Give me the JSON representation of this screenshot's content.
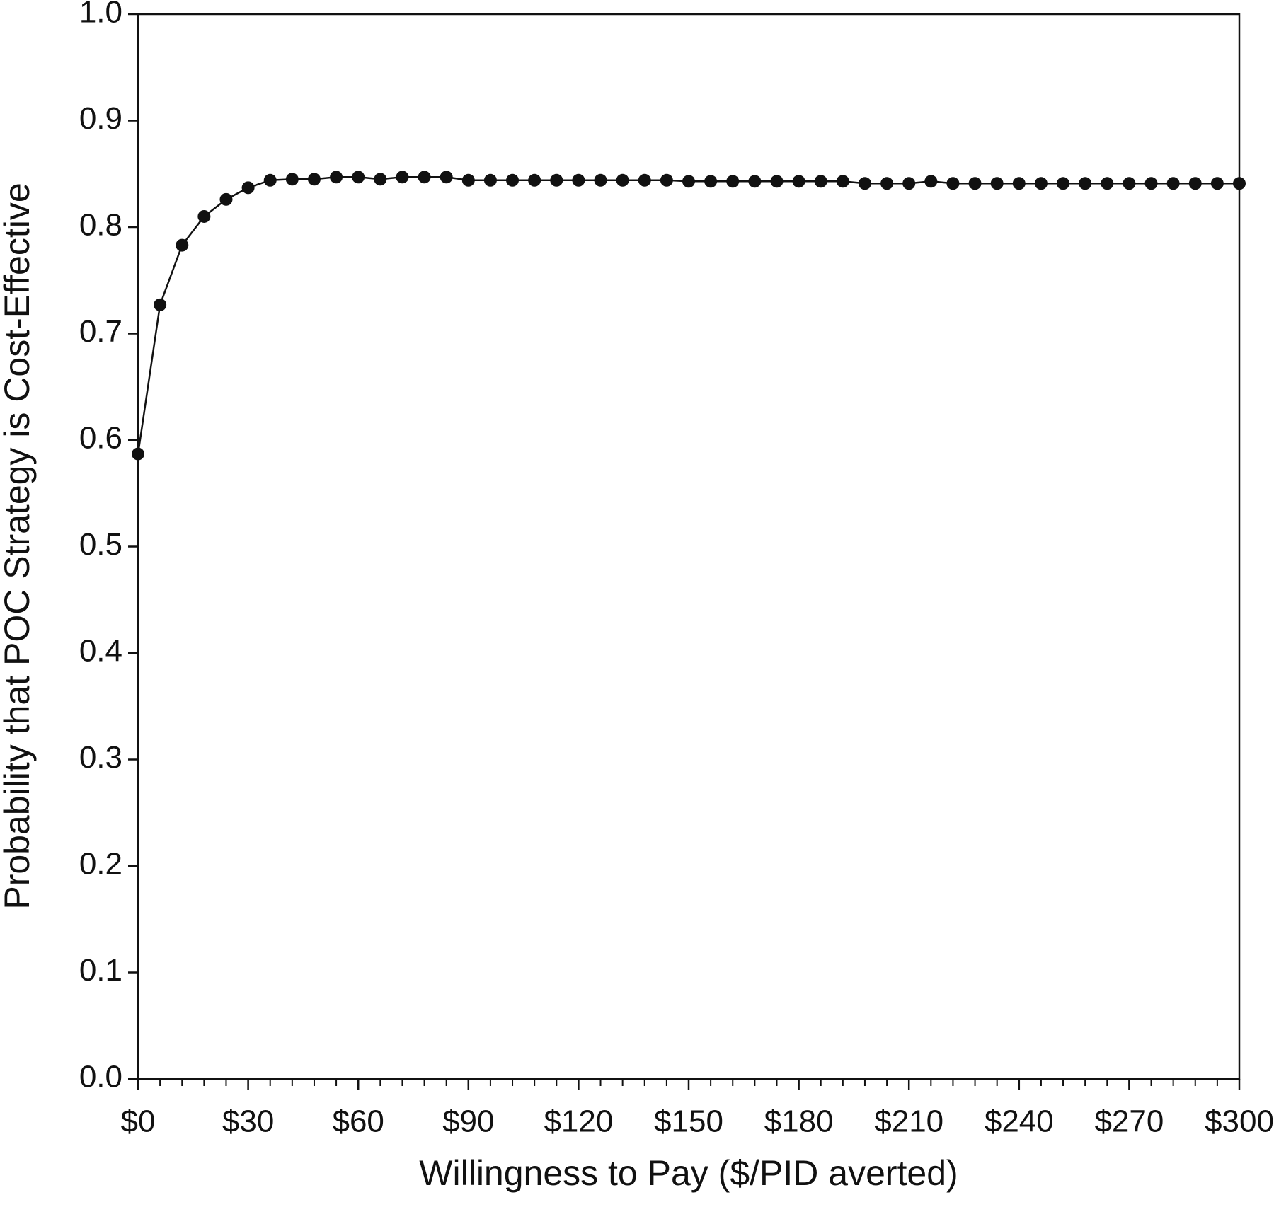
{
  "chart_data": {
    "type": "line",
    "xlabel": "Willingness to Pay ($/PID averted)",
    "ylabel": "Probability that POC Strategy is Cost-Effective",
    "x": [
      0,
      6,
      12,
      18,
      24,
      30,
      36,
      42,
      48,
      54,
      60,
      66,
      72,
      78,
      84,
      90,
      96,
      102,
      108,
      114,
      120,
      126,
      132,
      138,
      144,
      150,
      156,
      162,
      168,
      174,
      180,
      186,
      192,
      198,
      204,
      210,
      216,
      222,
      228,
      234,
      240,
      246,
      252,
      258,
      264,
      270,
      276,
      282,
      288,
      294,
      300
    ],
    "series": [
      {
        "name": "POC",
        "color": "#111111",
        "values": [
          0.587,
          0.727,
          0.783,
          0.81,
          0.826,
          0.837,
          0.844,
          0.845,
          0.845,
          0.847,
          0.847,
          0.845,
          0.847,
          0.847,
          0.847,
          0.844,
          0.844,
          0.844,
          0.844,
          0.844,
          0.844,
          0.844,
          0.844,
          0.844,
          0.844,
          0.843,
          0.843,
          0.843,
          0.843,
          0.843,
          0.843,
          0.843,
          0.843,
          0.841,
          0.841,
          0.841,
          0.843,
          0.841,
          0.841,
          0.841,
          0.841,
          0.841,
          0.841,
          0.841,
          0.841,
          0.841,
          0.841,
          0.841,
          0.841,
          0.841,
          0.841
        ]
      }
    ],
    "xlim": [
      0,
      300
    ],
    "xticks": [
      {
        "value": 0,
        "label": "$0"
      },
      {
        "value": 30,
        "label": "$30"
      },
      {
        "value": 60,
        "label": "$60"
      },
      {
        "value": 90,
        "label": "$90"
      },
      {
        "value": 120,
        "label": "$120"
      },
      {
        "value": 150,
        "label": "$150"
      },
      {
        "value": 180,
        "label": "$180"
      },
      {
        "value": 210,
        "label": "$210"
      },
      {
        "value": 240,
        "label": "$240"
      },
      {
        "value": 270,
        "label": "$270"
      },
      {
        "value": 300,
        "label": "$300"
      }
    ],
    "ylim": [
      0,
      1
    ],
    "yticks": [
      {
        "value": 0,
        "label": "0.0"
      },
      0.1,
      0.2,
      0.3,
      0.4,
      0.5,
      0.6,
      0.7,
      0.8,
      0.9,
      {
        "value": 1,
        "label": "1.0"
      }
    ]
  }
}
